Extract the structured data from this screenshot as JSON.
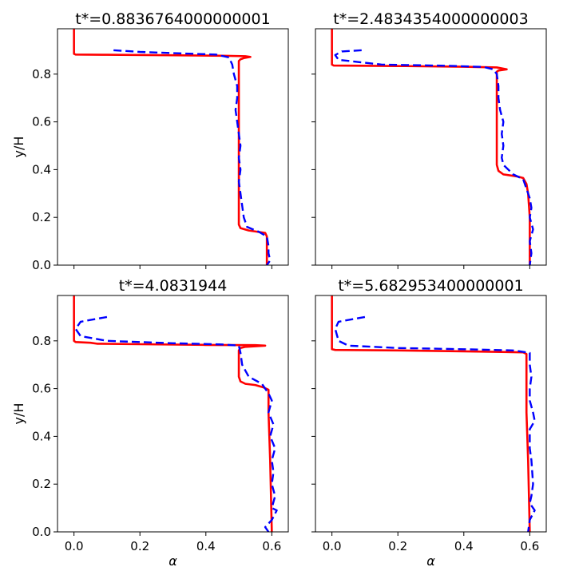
{
  "chart_data": [
    {
      "type": "line",
      "title": "t*=0.8836764000000001",
      "xlabel": "",
      "ylabel": "y/H",
      "xlim": [
        -0.05,
        0.65
      ],
      "ylim": [
        0,
        0.99
      ],
      "xticks": [
        0.0,
        0.2,
        0.4,
        0.6
      ],
      "xticklabels": [
        "",
        "",
        "",
        ""
      ],
      "yticks": [
        0.0,
        0.2,
        0.4,
        0.6,
        0.8
      ],
      "yticklabels": [
        "0.0",
        "0.2",
        "0.4",
        "0.6",
        "0.8"
      ],
      "grid": false,
      "series": [
        {
          "color": "#ff0000",
          "style": "solid",
          "points": [
            [
              0.0,
              0.99
            ],
            [
              0.0,
              0.885
            ],
            [
              0.005,
              0.882
            ],
            [
              0.1,
              0.881
            ],
            [
              0.3,
              0.879
            ],
            [
              0.45,
              0.877
            ],
            [
              0.52,
              0.875
            ],
            [
              0.535,
              0.872
            ],
            [
              0.515,
              0.867
            ],
            [
              0.505,
              0.862
            ],
            [
              0.5,
              0.855
            ],
            [
              0.5,
              0.6
            ],
            [
              0.5,
              0.3
            ],
            [
              0.5,
              0.17
            ],
            [
              0.505,
              0.155
            ],
            [
              0.53,
              0.145
            ],
            [
              0.58,
              0.135
            ],
            [
              0.585,
              0.12
            ],
            [
              0.585,
              0.0
            ]
          ]
        },
        {
          "color": "#0000ff",
          "style": "dashed",
          "points": [
            [
              0.12,
              0.9
            ],
            [
              0.2,
              0.893
            ],
            [
              0.3,
              0.888
            ],
            [
              0.43,
              0.882
            ],
            [
              0.47,
              0.87
            ],
            [
              0.48,
              0.84
            ],
            [
              0.485,
              0.8
            ],
            [
              0.495,
              0.75
            ],
            [
              0.495,
              0.7
            ],
            [
              0.49,
              0.65
            ],
            [
              0.495,
              0.6
            ],
            [
              0.5,
              0.55
            ],
            [
              0.505,
              0.5
            ],
            [
              0.5,
              0.45
            ],
            [
              0.505,
              0.4
            ],
            [
              0.5,
              0.35
            ],
            [
              0.505,
              0.3
            ],
            [
              0.51,
              0.25
            ],
            [
              0.515,
              0.2
            ],
            [
              0.525,
              0.16
            ],
            [
              0.56,
              0.14
            ],
            [
              0.585,
              0.12
            ],
            [
              0.59,
              0.08
            ],
            [
              0.59,
              0.05
            ],
            [
              0.595,
              0.02
            ],
            [
              0.585,
              0.0
            ]
          ]
        }
      ]
    },
    {
      "type": "line",
      "title": "t*=2.4834354000000003",
      "xlabel": "",
      "ylabel": "",
      "xlim": [
        -0.05,
        0.65
      ],
      "ylim": [
        0,
        0.99
      ],
      "xticks": [
        0.0,
        0.2,
        0.4,
        0.6
      ],
      "xticklabels": [
        "",
        "",
        "",
        ""
      ],
      "yticks": [
        0.0,
        0.2,
        0.4,
        0.6,
        0.8
      ],
      "yticklabels": [
        "",
        "",
        "",
        "",
        ""
      ],
      "grid": false,
      "series": [
        {
          "color": "#ff0000",
          "style": "solid",
          "points": [
            [
              0.0,
              0.99
            ],
            [
              0.0,
              0.84
            ],
            [
              0.005,
              0.836
            ],
            [
              0.2,
              0.834
            ],
            [
              0.4,
              0.831
            ],
            [
              0.5,
              0.828
            ],
            [
              0.53,
              0.82
            ],
            [
              0.505,
              0.815
            ],
            [
              0.5,
              0.81
            ],
            [
              0.5,
              0.6
            ],
            [
              0.5,
              0.42
            ],
            [
              0.505,
              0.395
            ],
            [
              0.52,
              0.38
            ],
            [
              0.56,
              0.372
            ],
            [
              0.58,
              0.365
            ],
            [
              0.59,
              0.34
            ],
            [
              0.595,
              0.3
            ],
            [
              0.6,
              0.2
            ],
            [
              0.6,
              0.0
            ]
          ]
        },
        {
          "color": "#0000ff",
          "style": "dashed",
          "points": [
            [
              0.09,
              0.9
            ],
            [
              0.03,
              0.895
            ],
            [
              0.01,
              0.88
            ],
            [
              0.02,
              0.86
            ],
            [
              0.15,
              0.84
            ],
            [
              0.35,
              0.835
            ],
            [
              0.46,
              0.83
            ],
            [
              0.49,
              0.82
            ],
            [
              0.5,
              0.8
            ],
            [
              0.505,
              0.75
            ],
            [
              0.505,
              0.7
            ],
            [
              0.51,
              0.65
            ],
            [
              0.52,
              0.6
            ],
            [
              0.515,
              0.55
            ],
            [
              0.52,
              0.5
            ],
            [
              0.515,
              0.45
            ],
            [
              0.52,
              0.42
            ],
            [
              0.55,
              0.38
            ],
            [
              0.58,
              0.36
            ],
            [
              0.59,
              0.32
            ],
            [
              0.6,
              0.28
            ],
            [
              0.605,
              0.24
            ],
            [
              0.6,
              0.2
            ],
            [
              0.61,
              0.15
            ],
            [
              0.6,
              0.1
            ],
            [
              0.605,
              0.05
            ],
            [
              0.6,
              0.0
            ]
          ]
        }
      ]
    },
    {
      "type": "line",
      "title": "t*=4.0831944",
      "xlabel": "α",
      "ylabel": "y/H",
      "xlim": [
        -0.05,
        0.65
      ],
      "ylim": [
        0,
        0.99
      ],
      "xticks": [
        0.0,
        0.2,
        0.4,
        0.6
      ],
      "xticklabels": [
        "0.0",
        "0.2",
        "0.4",
        "0.6"
      ],
      "yticks": [
        0.0,
        0.2,
        0.4,
        0.6,
        0.8
      ],
      "yticklabels": [
        "0.0",
        "0.2",
        "0.4",
        "0.6",
        "0.8"
      ],
      "grid": false,
      "series": [
        {
          "color": "#ff0000",
          "style": "solid",
          "points": [
            [
              0.0,
              0.99
            ],
            [
              0.0,
              0.8
            ],
            [
              0.005,
              0.795
            ],
            [
              0.05,
              0.792
            ],
            [
              0.07,
              0.788
            ],
            [
              0.2,
              0.786
            ],
            [
              0.4,
              0.783
            ],
            [
              0.55,
              0.782
            ],
            [
              0.58,
              0.78
            ],
            [
              0.52,
              0.775
            ],
            [
              0.505,
              0.77
            ],
            [
              0.5,
              0.76
            ],
            [
              0.5,
              0.7
            ],
            [
              0.5,
              0.65
            ],
            [
              0.505,
              0.63
            ],
            [
              0.52,
              0.62
            ],
            [
              0.55,
              0.615
            ],
            [
              0.575,
              0.605
            ],
            [
              0.59,
              0.595
            ],
            [
              0.59,
              0.5
            ],
            [
              0.595,
              0.3
            ],
            [
              0.6,
              0.0
            ]
          ]
        },
        {
          "color": "#0000ff",
          "style": "dashed",
          "points": [
            [
              0.1,
              0.9
            ],
            [
              0.02,
              0.88
            ],
            [
              0.005,
              0.85
            ],
            [
              0.02,
              0.82
            ],
            [
              0.1,
              0.8
            ],
            [
              0.3,
              0.79
            ],
            [
              0.45,
              0.785
            ],
            [
              0.5,
              0.78
            ],
            [
              0.505,
              0.75
            ],
            [
              0.51,
              0.7
            ],
            [
              0.53,
              0.65
            ],
            [
              0.57,
              0.62
            ],
            [
              0.59,
              0.58
            ],
            [
              0.6,
              0.55
            ],
            [
              0.59,
              0.5
            ],
            [
              0.605,
              0.45
            ],
            [
              0.595,
              0.4
            ],
            [
              0.61,
              0.35
            ],
            [
              0.6,
              0.3
            ],
            [
              0.605,
              0.25
            ],
            [
              0.6,
              0.2
            ],
            [
              0.61,
              0.15
            ],
            [
              0.6,
              0.1
            ],
            [
              0.615,
              0.09
            ],
            [
              0.6,
              0.05
            ],
            [
              0.58,
              0.02
            ],
            [
              0.59,
              0.0
            ]
          ]
        }
      ]
    },
    {
      "type": "line",
      "title": "t*=5.682953400000001",
      "xlabel": "α",
      "ylabel": "",
      "xlim": [
        -0.05,
        0.65
      ],
      "ylim": [
        0,
        0.99
      ],
      "xticks": [
        0.0,
        0.2,
        0.4,
        0.6
      ],
      "xticklabels": [
        "0.0",
        "0.2",
        "0.4",
        "0.6"
      ],
      "yticks": [
        0.0,
        0.2,
        0.4,
        0.6,
        0.8
      ],
      "yticklabels": [
        "",
        "",
        "",
        "",
        ""
      ],
      "grid": false,
      "series": [
        {
          "color": "#ff0000",
          "style": "solid",
          "points": [
            [
              0.0,
              0.99
            ],
            [
              0.0,
              0.765
            ],
            [
              0.01,
              0.762
            ],
            [
              0.2,
              0.76
            ],
            [
              0.4,
              0.756
            ],
            [
              0.58,
              0.752
            ],
            [
              0.59,
              0.745
            ],
            [
              0.59,
              0.5
            ],
            [
              0.595,
              0.3
            ],
            [
              0.6,
              0.0
            ]
          ]
        },
        {
          "color": "#0000ff",
          "style": "dashed",
          "points": [
            [
              0.1,
              0.9
            ],
            [
              0.02,
              0.88
            ],
            [
              0.01,
              0.85
            ],
            [
              0.02,
              0.8
            ],
            [
              0.05,
              0.78
            ],
            [
              0.2,
              0.77
            ],
            [
              0.4,
              0.765
            ],
            [
              0.55,
              0.76
            ],
            [
              0.6,
              0.75
            ],
            [
              0.6,
              0.7
            ],
            [
              0.605,
              0.65
            ],
            [
              0.6,
              0.6
            ],
            [
              0.6,
              0.55
            ],
            [
              0.61,
              0.5
            ],
            [
              0.615,
              0.465
            ],
            [
              0.6,
              0.43
            ],
            [
              0.6,
              0.35
            ],
            [
              0.605,
              0.3
            ],
            [
              0.61,
              0.2
            ],
            [
              0.605,
              0.15
            ],
            [
              0.6,
              0.12
            ],
            [
              0.615,
              0.09
            ],
            [
              0.6,
              0.05
            ],
            [
              0.595,
              0.0
            ]
          ]
        }
      ]
    }
  ]
}
